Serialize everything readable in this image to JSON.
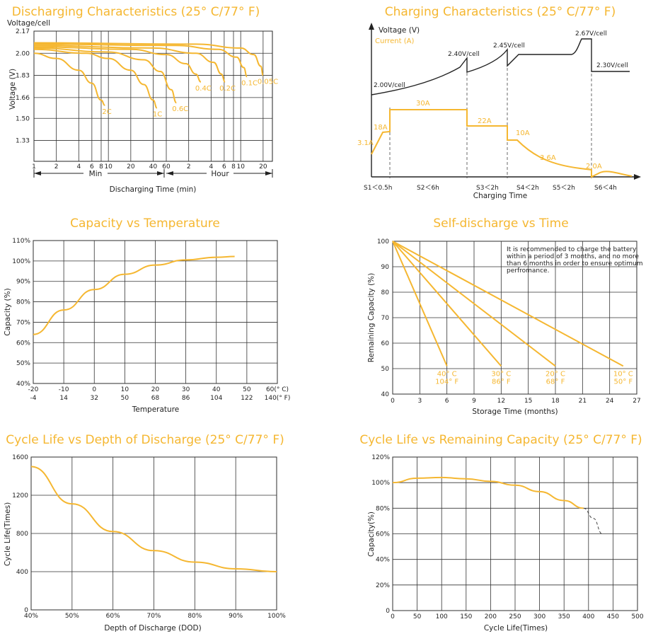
{
  "colors": {
    "accent": "#f5b731",
    "ink": "#222222"
  },
  "chart_data": [
    {
      "id": "discharging",
      "type": "line",
      "title": "Discharging Characteristics (25° C/77° F)",
      "ylabel": "Voltage (V)",
      "ylabel_top": "Voltage/cell",
      "xlabel": "Discharging Time (min)",
      "x_scale": "log",
      "ylim": [
        1.17,
        2.17
      ],
      "yticks": [
        "1.33",
        "1.50",
        "1.66",
        "1.83",
        "2.00",
        "2.17"
      ],
      "ytick_values": [
        1.33,
        1.5,
        1.66,
        1.83,
        2.0,
        2.17
      ],
      "xtick_labels": [
        "1",
        "2",
        "4",
        "6",
        "8",
        "10",
        "20",
        "40",
        "60",
        "2",
        "4",
        "6",
        "8",
        "10",
        "20"
      ],
      "xtick_minutes": [
        1,
        2,
        4,
        6,
        8,
        10,
        20,
        40,
        60,
        120,
        240,
        360,
        480,
        600,
        1200
      ],
      "x_group_min": "Min",
      "x_group_hour": "Hour",
      "series": [
        {
          "name": "2C",
          "points": [
            [
              1,
              2.0
            ],
            [
              2,
              1.96
            ],
            [
              4,
              1.87
            ],
            [
              6,
              1.77
            ],
            [
              8,
              1.64
            ],
            [
              9,
              1.6
            ]
          ]
        },
        {
          "name": "1C",
          "points": [
            [
              1,
              2.03
            ],
            [
              5,
              2.0
            ],
            [
              10,
              1.96
            ],
            [
              20,
              1.87
            ],
            [
              30,
              1.76
            ],
            [
              40,
              1.64
            ],
            [
              45,
              1.58
            ]
          ]
        },
        {
          "name": "0.6C",
          "points": [
            [
              1,
              2.04
            ],
            [
              10,
              2.01
            ],
            [
              30,
              1.95
            ],
            [
              50,
              1.86
            ],
            [
              70,
              1.72
            ],
            [
              82,
              1.62
            ]
          ]
        },
        {
          "name": "0.4C",
          "points": [
            [
              1,
              2.05
            ],
            [
              20,
              2.03
            ],
            [
              60,
              1.99
            ],
            [
              110,
              1.92
            ],
            [
              150,
              1.84
            ],
            [
              175,
              1.78
            ]
          ]
        },
        {
          "name": "0.2C",
          "points": [
            [
              1,
              2.06
            ],
            [
              40,
              2.04
            ],
            [
              150,
              2.0
            ],
            [
              260,
              1.93
            ],
            [
              330,
              1.84
            ],
            [
              370,
              1.78
            ]
          ]
        },
        {
          "name": "0.1C",
          "points": [
            [
              1,
              2.07
            ],
            [
              80,
              2.06
            ],
            [
              300,
              2.03
            ],
            [
              530,
              1.97
            ],
            [
              660,
              1.89
            ],
            [
              730,
              1.82
            ]
          ]
        },
        {
          "name": "0.05C",
          "points": [
            [
              1,
              2.08
            ],
            [
              150,
              2.07
            ],
            [
              600,
              2.04
            ],
            [
              900,
              1.99
            ],
            [
              1120,
              1.9
            ],
            [
              1200,
              1.83
            ]
          ]
        }
      ]
    },
    {
      "id": "charging",
      "type": "line",
      "title": "Charging Characteristics (25° C/77° F)",
      "ylabel_voltage": "Voltage (V)",
      "ylabel_current": "Current (A)",
      "xlabel": "Charging Time",
      "stage_labels": [
        "S1＜0.5h",
        "S2＜6h",
        "S3＜2h",
        "S4＜2h",
        "S5＜2h",
        "S6＜4h"
      ],
      "voltage_labels": [
        "2.00V/cell",
        "2.40V/cell",
        "2.45V/cell",
        "2.67V/cell",
        "2.30V/cell"
      ],
      "current_labels": [
        "3.1A",
        "18A",
        "30A",
        "22A",
        "10A",
        "3.6A",
        "2.0A"
      ]
    },
    {
      "id": "capacity_temp",
      "type": "line",
      "title": "Capacity vs Temperature",
      "ylabel": "Capacity (%)",
      "xlabel": "Temperature",
      "xlim": [
        -20,
        60
      ],
      "ylim": [
        40,
        110
      ],
      "yticks": [
        "40%",
        "50%",
        "60%",
        "70%",
        "80%",
        "90%",
        "100%",
        "110%"
      ],
      "xticks_c": [
        "-20",
        "-10",
        "0",
        "10",
        "20",
        "30",
        "40",
        "50",
        "60(° C)"
      ],
      "xticks_f": [
        "-4",
        "14",
        "32",
        "50",
        "68",
        "86",
        "104",
        "122",
        "140(° F)"
      ],
      "series": [
        {
          "x": [
            -20,
            -10,
            0,
            10,
            20,
            30,
            40,
            46
          ],
          "y": [
            64,
            76,
            86,
            93.5,
            98,
            100.5,
            101.8,
            102.2
          ]
        }
      ]
    },
    {
      "id": "self_discharge",
      "type": "line",
      "title": "Self-discharge vs Time",
      "ylabel": "Remaining Capacity (%)",
      "xlabel": "Storage Time (months)",
      "xlim": [
        0,
        27
      ],
      "ylim": [
        40,
        100
      ],
      "xticks": [
        "0",
        "3",
        "6",
        "9",
        "12",
        "15",
        "18",
        "21",
        "24",
        "27"
      ],
      "yticks": [
        "40",
        "50",
        "60",
        "70",
        "80",
        "90",
        "100"
      ],
      "note": "It is recommended to charge the battery within a period of 3 months, and no more than 6 months in order to ensure optimum perfromance.",
      "series": [
        {
          "label_c": "40° C",
          "label_f": "104° F",
          "x": [
            0,
            6
          ],
          "y": [
            100,
            51
          ]
        },
        {
          "label_c": "30° C",
          "label_f": "86° F",
          "x": [
            0,
            12
          ],
          "y": [
            100,
            51
          ]
        },
        {
          "label_c": "20° C",
          "label_f": "68° F",
          "x": [
            0,
            18
          ],
          "y": [
            100,
            51
          ]
        },
        {
          "label_c": "10° C",
          "label_f": "50° F",
          "x": [
            0,
            25.5
          ],
          "y": [
            100,
            51
          ]
        }
      ]
    },
    {
      "id": "cycle_dod",
      "type": "line",
      "title": "Cycle Life vs Depth of Discharge (25° C/77° F)",
      "ylabel": "Cycle Life(Times)",
      "xlabel": "Depth of Discharge (DOD)",
      "xlim": [
        40,
        100
      ],
      "ylim": [
        0,
        1600
      ],
      "xticks": [
        "40%",
        "50%",
        "60%",
        "70%",
        "80%",
        "90%",
        "100%"
      ],
      "yticks": [
        "0",
        "400",
        "800",
        "1200",
        "1600"
      ],
      "series": [
        {
          "x": [
            40,
            50,
            60,
            70,
            80,
            90,
            100
          ],
          "y": [
            1500,
            1110,
            820,
            620,
            500,
            430,
            400
          ]
        }
      ]
    },
    {
      "id": "cycle_capacity",
      "type": "line",
      "title": "Cycle Life vs Remaining Capacity (25° C/77° F)",
      "ylabel": "Capacity(%)",
      "xlabel": "Cycle Life(Times)",
      "xlim": [
        0,
        500
      ],
      "ylim": [
        0,
        120
      ],
      "xticks": [
        "0",
        "50",
        "100",
        "150",
        "200",
        "250",
        "300",
        "350",
        "400",
        "450",
        "500"
      ],
      "yticks": [
        "0",
        "20%",
        "40%",
        "60%",
        "80%",
        "100%",
        "120%"
      ],
      "series": [
        {
          "x": [
            0,
            50,
            100,
            150,
            200,
            250,
            300,
            350,
            390
          ],
          "y": [
            100,
            103.5,
            104,
            103,
            101,
            98,
            93,
            86,
            80
          ]
        },
        {
          "style": "dashed",
          "x": [
            390,
            410,
            428
          ],
          "y": [
            80,
            72,
            60
          ]
        }
      ]
    }
  ]
}
